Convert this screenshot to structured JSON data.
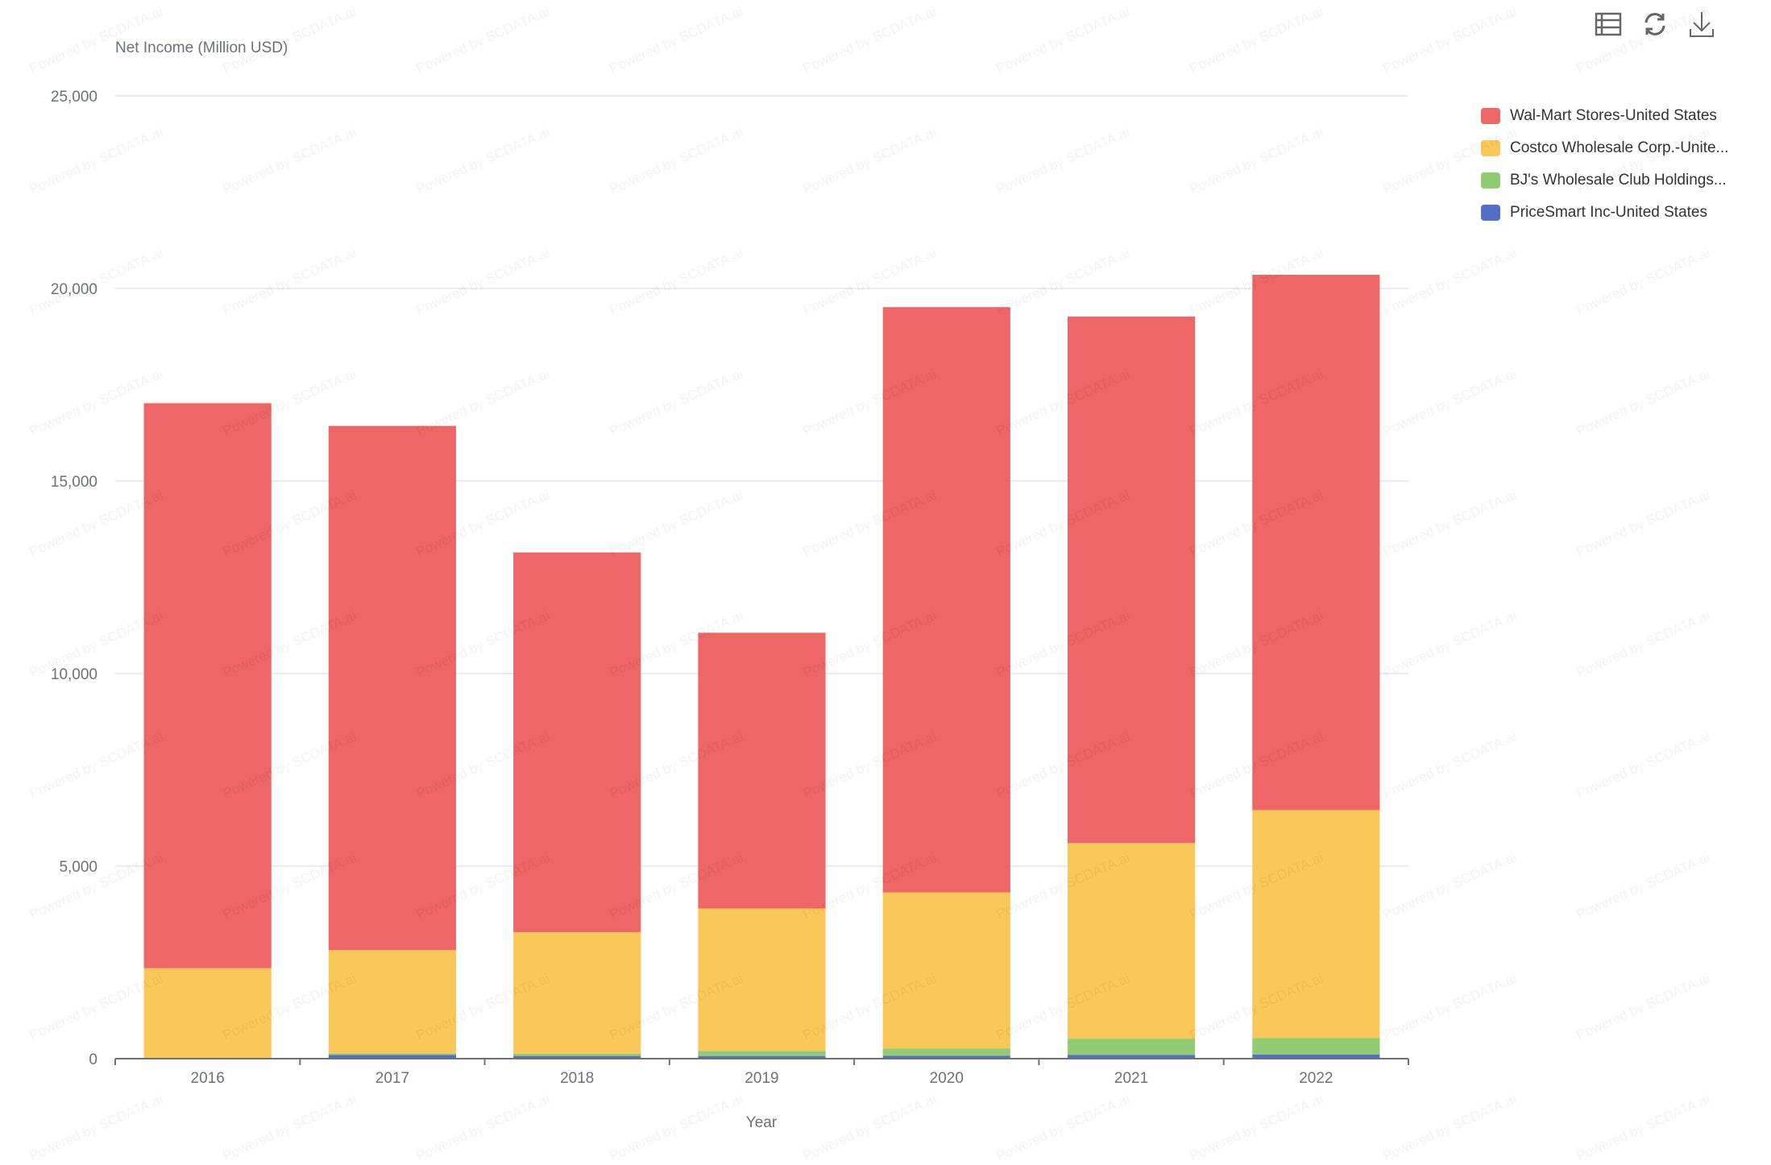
{
  "watermark": "Powered by SCDATA.ai",
  "toolbar": {
    "icons": [
      "data-view-icon",
      "refresh-icon",
      "download-icon"
    ]
  },
  "chart_data": {
    "type": "bar",
    "stacked": true,
    "title": "",
    "ylabel": "Net Income (Million USD)",
    "xlabel": "Year",
    "ylim": [
      0,
      25000
    ],
    "yticks": [
      "0",
      "5,000",
      "10,000",
      "15,000",
      "20,000",
      "25,000"
    ],
    "ytick_values": [
      0,
      5000,
      10000,
      15000,
      20000,
      25000
    ],
    "grid": true,
    "legend_position": "right",
    "categories": [
      "2016",
      "2017",
      "2018",
      "2019",
      "2020",
      "2021",
      "2022"
    ],
    "series": [
      {
        "name": "PriceSmart Inc-United States",
        "color": "#5470c6",
        "values": [
          0,
          100,
          70,
          70,
          75,
          100,
          110
        ]
      },
      {
        "name": "BJ's Wholesale Club Holdings...",
        "color": "#91cc75",
        "values": [
          0,
          40,
          55,
          130,
          190,
          420,
          425
        ]
      },
      {
        "name": "Costco Wholesale Corp.-Unite...",
        "color": "#fac858",
        "values": [
          2350,
          2680,
          3160,
          3700,
          4050,
          5080,
          5920
        ]
      },
      {
        "name": "Wal-Mart Stores-United States",
        "color": "#ee6666",
        "values": [
          14670,
          13610,
          9860,
          7160,
          15200,
          13670,
          13900
        ]
      }
    ]
  }
}
